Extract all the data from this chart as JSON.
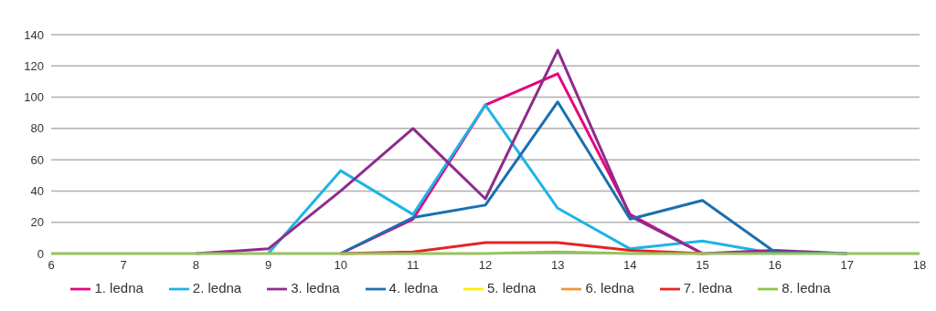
{
  "chart_data": {
    "type": "line",
    "x": [
      6,
      7,
      8,
      9,
      10,
      11,
      12,
      13,
      14,
      15,
      16,
      17,
      18
    ],
    "series": [
      {
        "name": "1. ledna",
        "color": "#e6007e",
        "values": [
          null,
          null,
          null,
          null,
          0,
          22,
          95,
          115,
          25,
          0,
          null,
          null,
          null
        ]
      },
      {
        "name": "2. ledna",
        "color": "#1eb4e6",
        "values": [
          null,
          null,
          null,
          0,
          53,
          25,
          95,
          29,
          3,
          8,
          0,
          null,
          null
        ]
      },
      {
        "name": "3. ledna",
        "color": "#8e2c8c",
        "values": [
          null,
          null,
          0,
          3,
          40,
          80,
          35,
          130,
          24,
          0,
          2,
          0,
          null
        ]
      },
      {
        "name": "4. ledna",
        "color": "#1a6fb0",
        "values": [
          null,
          null,
          null,
          null,
          0,
          23,
          31,
          97,
          22,
          34,
          1,
          0,
          null
        ]
      },
      {
        "name": "5. ledna",
        "color": "#ffed00",
        "values": [
          null,
          null,
          null,
          null,
          null,
          null,
          null,
          null,
          null,
          null,
          null,
          null,
          null
        ]
      },
      {
        "name": "6. ledna",
        "color": "#f39237",
        "values": [
          null,
          null,
          null,
          null,
          null,
          null,
          null,
          null,
          null,
          null,
          null,
          null,
          null
        ]
      },
      {
        "name": "7. ledna",
        "color": "#e52421",
        "values": [
          null,
          null,
          null,
          null,
          0,
          1,
          7,
          7,
          2,
          0,
          null,
          null,
          null
        ]
      },
      {
        "name": "8. ledna",
        "color": "#8cc63f",
        "values": [
          0,
          0,
          0,
          0,
          0,
          0,
          0,
          1,
          0,
          0,
          0,
          0,
          0
        ]
      }
    ],
    "xlim": [
      6,
      18
    ],
    "xticks": [
      6,
      7,
      8,
      9,
      10,
      11,
      12,
      13,
      14,
      15,
      16,
      17,
      18
    ],
    "ylim": [
      0,
      140
    ],
    "yticks": [
      0,
      20,
      40,
      60,
      80,
      100,
      120,
      140
    ],
    "grid": "y",
    "legend": "bottom",
    "marker": "none",
    "line_style": "solid"
  }
}
